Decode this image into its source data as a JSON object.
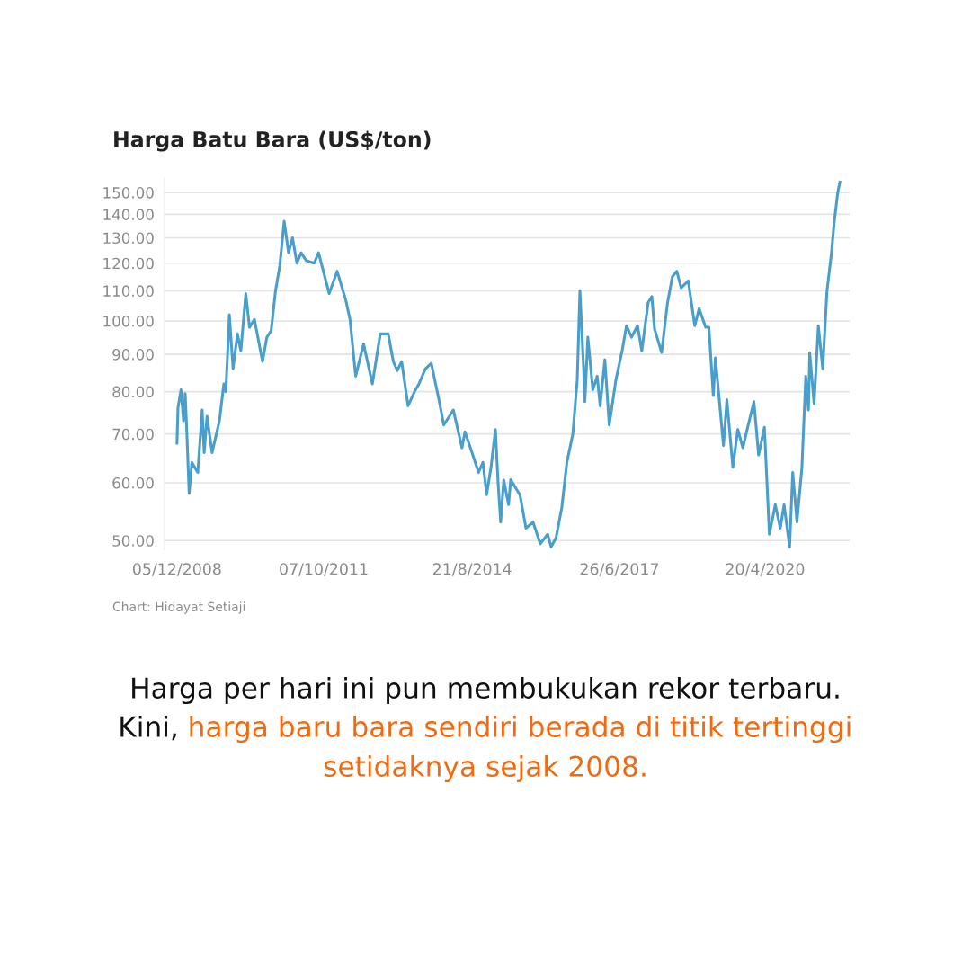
{
  "chart_data": {
    "type": "line",
    "title": "Harga Batu Bara (US$/ton)",
    "annotations": [
      "Chart: Hidayat Setiaji",
      "Harga per hari ini pun membukukan rekor terbaru.",
      "Kini,",
      "harga baru bara sendiri berada di titik tertinggi setidaknya sejak 2008."
    ],
    "series": [
      {
        "color": "#4a9fca",
        "x": [
          "2008-12-05",
          "2008-12-12",
          "2009-01-02",
          "2009-01-20",
          "2009-02-01",
          "2009-02-10",
          "2009-03-01",
          "2009-03-20",
          "2009-05-01",
          "2009-06-01",
          "2009-06-15",
          "2009-07-05",
          "2009-08-10",
          "2009-10-01",
          "2009-11-01",
          "2009-11-15",
          "2009-12-10",
          "2010-01-05",
          "2010-02-05",
          "2010-03-01",
          "2010-04-05",
          "2010-05-01",
          "2010-06-05",
          "2010-08-01",
          "2010-09-01",
          "2010-10-01",
          "2010-11-01",
          "2010-12-01",
          "2011-01-01",
          "2011-02-01",
          "2011-03-01",
          "2011-04-01",
          "2011-05-01",
          "2011-06-05",
          "2011-08-01",
          "2011-09-01",
          "2011-11-15",
          "2012-01-10",
          "2012-03-10",
          "2012-04-10",
          "2012-05-20",
          "2012-07-15",
          "2012-09-15",
          "2012-11-10",
          "2013-01-05",
          "2013-02-10",
          "2013-03-10",
          "2013-04-10",
          "2013-05-25",
          "2013-07-10",
          "2013-08-10",
          "2013-09-25",
          "2013-11-05",
          "2014-01-01",
          "2014-02-01",
          "2014-04-10",
          "2014-06-10",
          "2014-07-01",
          "2014-08-20",
          "2014-10-05",
          "2014-11-05",
          "2014-12-01",
          "2015-01-01",
          "2015-02-01",
          "2015-02-20",
          "2015-03-10",
          "2015-04-01",
          "2015-05-05",
          "2015-05-20",
          "2015-07-25",
          "2015-09-05",
          "2015-10-25",
          "2015-12-15",
          "2016-02-05",
          "2016-03-01",
          "2016-04-05",
          "2016-05-15",
          "2016-06-20",
          "2016-08-01",
          "2016-09-01",
          "2016-09-20",
          "2016-10-15",
          "2016-10-25",
          "2016-11-15",
          "2016-12-20",
          "2017-01-20",
          "2017-02-10",
          "2017-03-15",
          "2017-04-15",
          "2017-06-01",
          "2017-07-15",
          "2017-08-15",
          "2017-09-20",
          "2017-11-01",
          "2017-12-01",
          "2018-01-15",
          "2018-02-10",
          "2018-03-01",
          "2018-04-20",
          "2018-06-01",
          "2018-07-05",
          "2018-08-05",
          "2018-09-05",
          "2018-10-25",
          "2018-12-10",
          "2019-01-10",
          "2019-02-25",
          "2019-03-20",
          "2019-04-20",
          "2019-05-05",
          "2019-07-01",
          "2019-07-25",
          "2019-09-05",
          "2019-10-10",
          "2019-11-15",
          "2019-12-15",
          "2020-02-01",
          "2020-03-05",
          "2020-04-15",
          "2020-05-20",
          "2020-07-01",
          "2020-08-05",
          "2020-09-01",
          "2020-10-10",
          "2020-11-01",
          "2020-12-01",
          "2021-01-05",
          "2021-02-01",
          "2021-02-20",
          "2021-03-01",
          "2021-04-01",
          "2021-05-01",
          "2021-06-01",
          "2021-07-01",
          "2021-08-01",
          "2021-08-20",
          "2021-09-15",
          "2021-09-30"
        ],
        "values": [
          68,
          76,
          80.5,
          73,
          79.5,
          72.5,
          58,
          64,
          62,
          75.5,
          66,
          74,
          66,
          73,
          82,
          80,
          102,
          86,
          96,
          91,
          109,
          98,
          100.5,
          88,
          95,
          97,
          110,
          119,
          137,
          124,
          130,
          120,
          124,
          121,
          120,
          124,
          109,
          117,
          107,
          100.5,
          84,
          93,
          82,
          96,
          96,
          88,
          85.5,
          88,
          76.5,
          80,
          82,
          86,
          87.5,
          77.5,
          72,
          75.5,
          67,
          70.5,
          66,
          62,
          64,
          57.8,
          63,
          71,
          60,
          53,
          60.5,
          56,
          60.6,
          57.7,
          52,
          53,
          49.5,
          51,
          49,
          50.5,
          55.5,
          64,
          70,
          83,
          110,
          87,
          77.5,
          95,
          80.5,
          84,
          76.5,
          88.5,
          72,
          83,
          91,
          98.5,
          95,
          98.5,
          91,
          106,
          108,
          97.5,
          90.5,
          106,
          115,
          117,
          111,
          113.5,
          98.5,
          104,
          98,
          98,
          79,
          89,
          67.5,
          78,
          63,
          71,
          67,
          71,
          77.5,
          65.5,
          71.5,
          51,
          56,
          52,
          56,
          49,
          62,
          53,
          63,
          84,
          75.5,
          90.5,
          77,
          98.5,
          86,
          110,
          123.5,
          136,
          150,
          155
        ]
      }
    ],
    "log": "y",
    "ylim": [
      48.5,
      157
    ],
    "yticks": [
      {
        "value": 50,
        "label": "50.00"
      },
      {
        "value": 60,
        "label": "60.00"
      },
      {
        "value": 70,
        "label": "70.00"
      },
      {
        "value": 80,
        "label": "80.00"
      },
      {
        "value": 90,
        "label": "90.00"
      },
      {
        "value": 100,
        "label": "100.00"
      },
      {
        "value": 110,
        "label": "110.00"
      },
      {
        "value": 120,
        "label": "120.00"
      },
      {
        "value": 130,
        "label": "130.00"
      },
      {
        "value": 140,
        "label": "140.00"
      },
      {
        "value": 150,
        "label": "150.00"
      }
    ],
    "xlim": [
      "2008-09-08",
      "2021-12-08"
    ],
    "xticks": [
      {
        "value": "2008-12-05",
        "label": "05/12/2008"
      },
      {
        "value": "2011-10-07",
        "label": "07/10/2011"
      },
      {
        "value": "2014-08-21",
        "label": "21/8/2014"
      },
      {
        "value": "2017-06-26",
        "label": "26/6/2017"
      },
      {
        "value": "2020-04-20",
        "label": "20/4/2020"
      }
    ],
    "grid": "y",
    "legend": false,
    "line_style": "solid",
    "marker": "none"
  }
}
